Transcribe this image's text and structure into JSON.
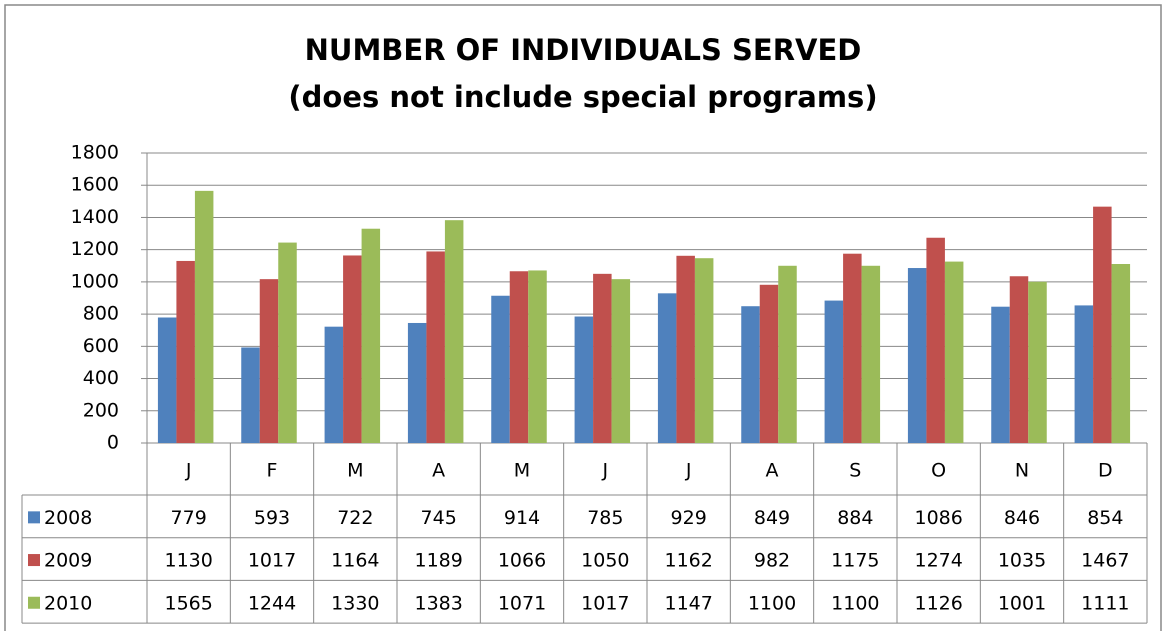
{
  "chart_data": {
    "type": "bar",
    "title": "NUMBER OF INDIVIDUALS SERVED",
    "subtitle": "(does not include special programs)",
    "categories": [
      "J",
      "F",
      "M",
      "A",
      "M",
      "J",
      "J",
      "A",
      "S",
      "O",
      "N",
      "D"
    ],
    "series": [
      {
        "name": "2008",
        "color": "#4f81bd",
        "values": [
          779,
          593,
          722,
          745,
          914,
          785,
          929,
          849,
          884,
          1086,
          846,
          854
        ]
      },
      {
        "name": "2009",
        "color": "#c0504d",
        "values": [
          1130,
          1017,
          1164,
          1189,
          1066,
          1050,
          1162,
          982,
          1175,
          1274,
          1035,
          1467
        ]
      },
      {
        "name": "2010",
        "color": "#9bbb59",
        "values": [
          1565,
          1244,
          1330,
          1383,
          1071,
          1017,
          1147,
          1100,
          1100,
          1126,
          1001,
          1111
        ]
      }
    ],
    "ylim": [
      0,
      1800
    ],
    "yticks": [
      0,
      200,
      400,
      600,
      800,
      1000,
      1200,
      1400,
      1600,
      1800
    ],
    "grid": true
  }
}
